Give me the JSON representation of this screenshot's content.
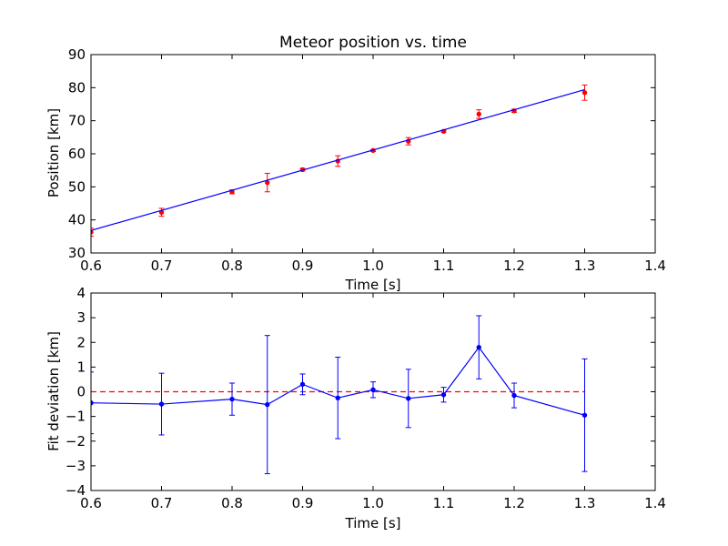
{
  "chart_data": [
    {
      "type": "scatter",
      "title": "Meteor position vs. time",
      "xlabel": "Time [s]",
      "ylabel": "Position [km]",
      "xlim": [
        0.6,
        1.4
      ],
      "ylim": [
        30,
        90
      ],
      "xticks": [
        "0.6",
        "0.7",
        "0.8",
        "0.9",
        "1.0",
        "1.1",
        "1.2",
        "1.3",
        "1.4"
      ],
      "yticks": [
        "30",
        "40",
        "50",
        "60",
        "70",
        "80",
        "90"
      ],
      "grid": false,
      "series": [
        {
          "kind": "points-with-error-bars",
          "color": "#ff0000",
          "x": [
            0.6,
            0.7,
            0.8,
            0.85,
            0.9,
            0.95,
            1.0,
            1.05,
            1.1,
            1.15,
            1.2,
            1.3
          ],
          "y": [
            36.3,
            42.3,
            48.5,
            51.3,
            55.2,
            57.8,
            61.0,
            63.8,
            66.8,
            72.0,
            73.0,
            78.5
          ],
          "yerr": [
            1.2,
            1.2,
            0.6,
            2.8,
            0.4,
            1.6,
            0.3,
            1.1,
            0.3,
            1.3,
            0.5,
            2.3
          ]
        },
        {
          "kind": "fit-line",
          "color": "#0000ff",
          "x": [
            0.6,
            1.3
          ],
          "y": [
            36.8,
            79.4
          ]
        }
      ]
    },
    {
      "type": "line",
      "title": "",
      "xlabel": "Time [s]",
      "ylabel": "Fit deviation [km]",
      "xlim": [
        0.6,
        1.4
      ],
      "ylim": [
        -4,
        4
      ],
      "xticks": [
        "0.6",
        "0.7",
        "0.8",
        "0.9",
        "1.0",
        "1.1",
        "1.2",
        "1.3",
        "1.4"
      ],
      "yticks": [
        "−4",
        "−3",
        "−2",
        "−1",
        "0",
        "1",
        "2",
        "3",
        "4"
      ],
      "grid": false,
      "reference_line": {
        "y": 0,
        "color": "#ff0000",
        "style": "dashed"
      },
      "series": [
        {
          "kind": "line-with-error-bars",
          "color": "#0000ff",
          "x": [
            0.6,
            0.7,
            0.8,
            0.85,
            0.9,
            0.95,
            1.0,
            1.05,
            1.1,
            1.15,
            1.2,
            1.3
          ],
          "y": [
            -0.45,
            -0.5,
            -0.3,
            -0.52,
            0.3,
            -0.25,
            0.08,
            -0.27,
            -0.12,
            1.8,
            -0.15,
            -0.95
          ],
          "yerr": [
            1.25,
            1.25,
            0.65,
            2.8,
            0.42,
            1.65,
            0.32,
            1.18,
            0.3,
            1.28,
            0.5,
            2.28
          ]
        }
      ]
    }
  ]
}
